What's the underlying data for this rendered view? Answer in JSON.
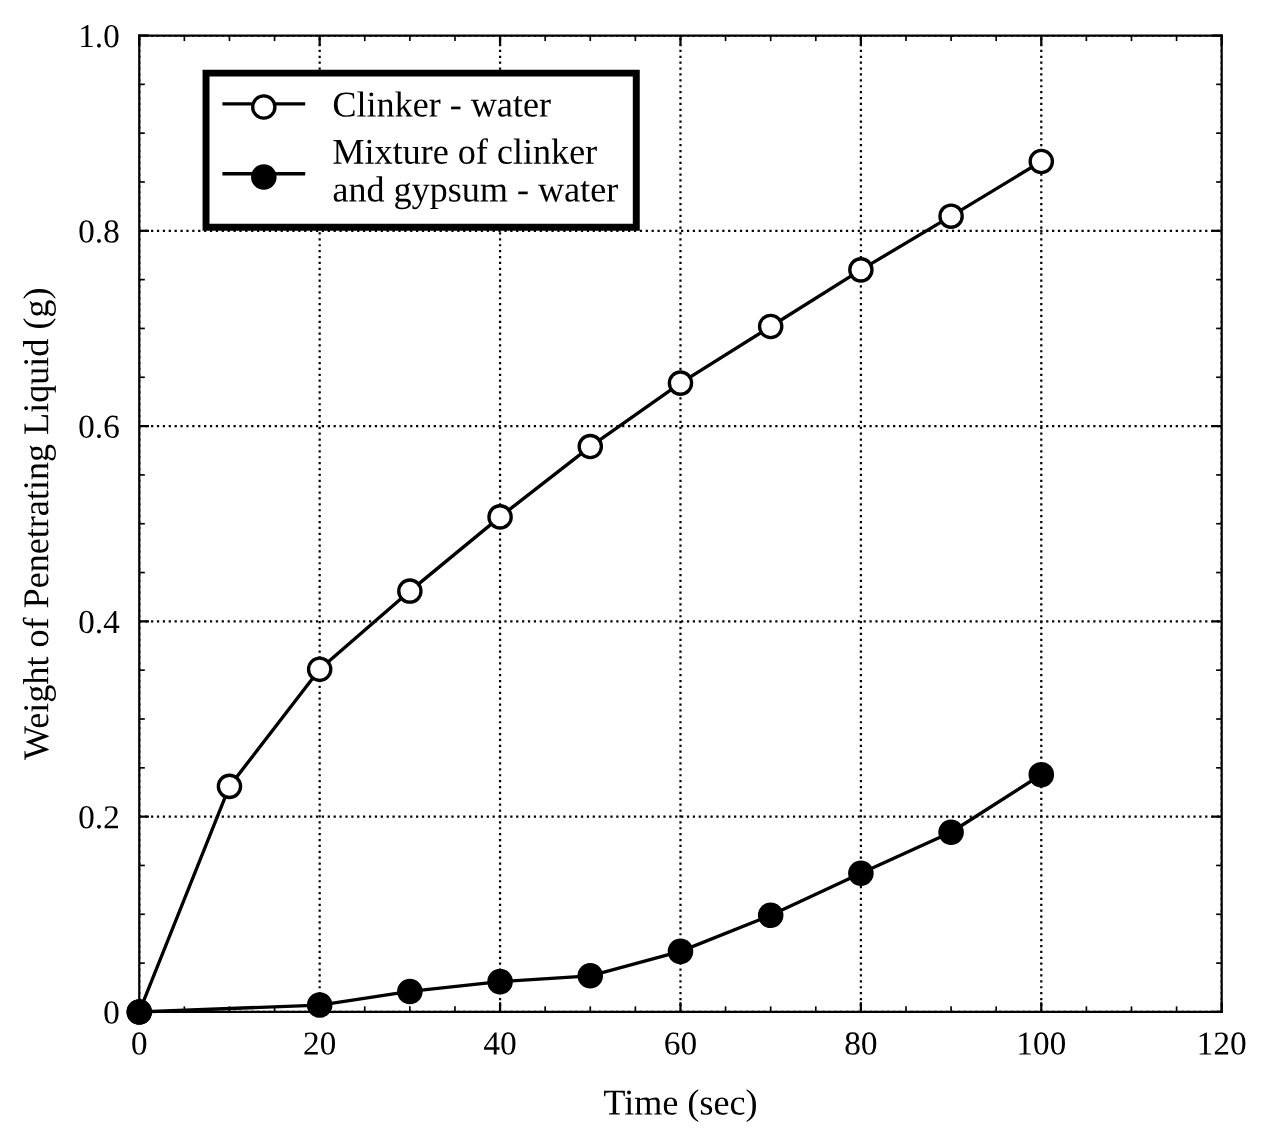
{
  "chart_data": {
    "type": "line",
    "xlabel": "Time (sec)",
    "ylabel": "Weight of Penetrating Liquid (g)",
    "xlim": [
      0,
      120
    ],
    "ylim": [
      0,
      1.0
    ],
    "xticks": [
      0,
      20,
      40,
      60,
      80,
      100,
      120
    ],
    "yticks": [
      {
        "value": 0,
        "label": "0"
      },
      0.2,
      0.4,
      0.6,
      0.8,
      {
        "value": 1.0,
        "label": "1.0"
      }
    ],
    "grid": true,
    "legend": "top left",
    "marker": "circle",
    "line_style": "solid",
    "series": [
      {
        "name": "Clinker - water",
        "color": "#000000",
        "x": [
          0,
          10,
          20,
          30,
          40,
          50,
          60,
          70,
          80,
          90,
          100
        ],
        "values": [
          0,
          0.231,
          0.351,
          0.431,
          0.507,
          0.579,
          0.644,
          0.702,
          0.76,
          0.815,
          0.871
        ]
      },
      {
        "name": "Mixture of clinker\nand gypsum - water",
        "color": "#000000",
        "x": [
          0,
          20,
          30,
          40,
          50,
          60,
          70,
          80,
          90,
          100
        ],
        "values": [
          0,
          0.007,
          0.021,
          0.031,
          0.037,
          0.062,
          0.099,
          0.142,
          0.184,
          0.243
        ]
      }
    ]
  }
}
